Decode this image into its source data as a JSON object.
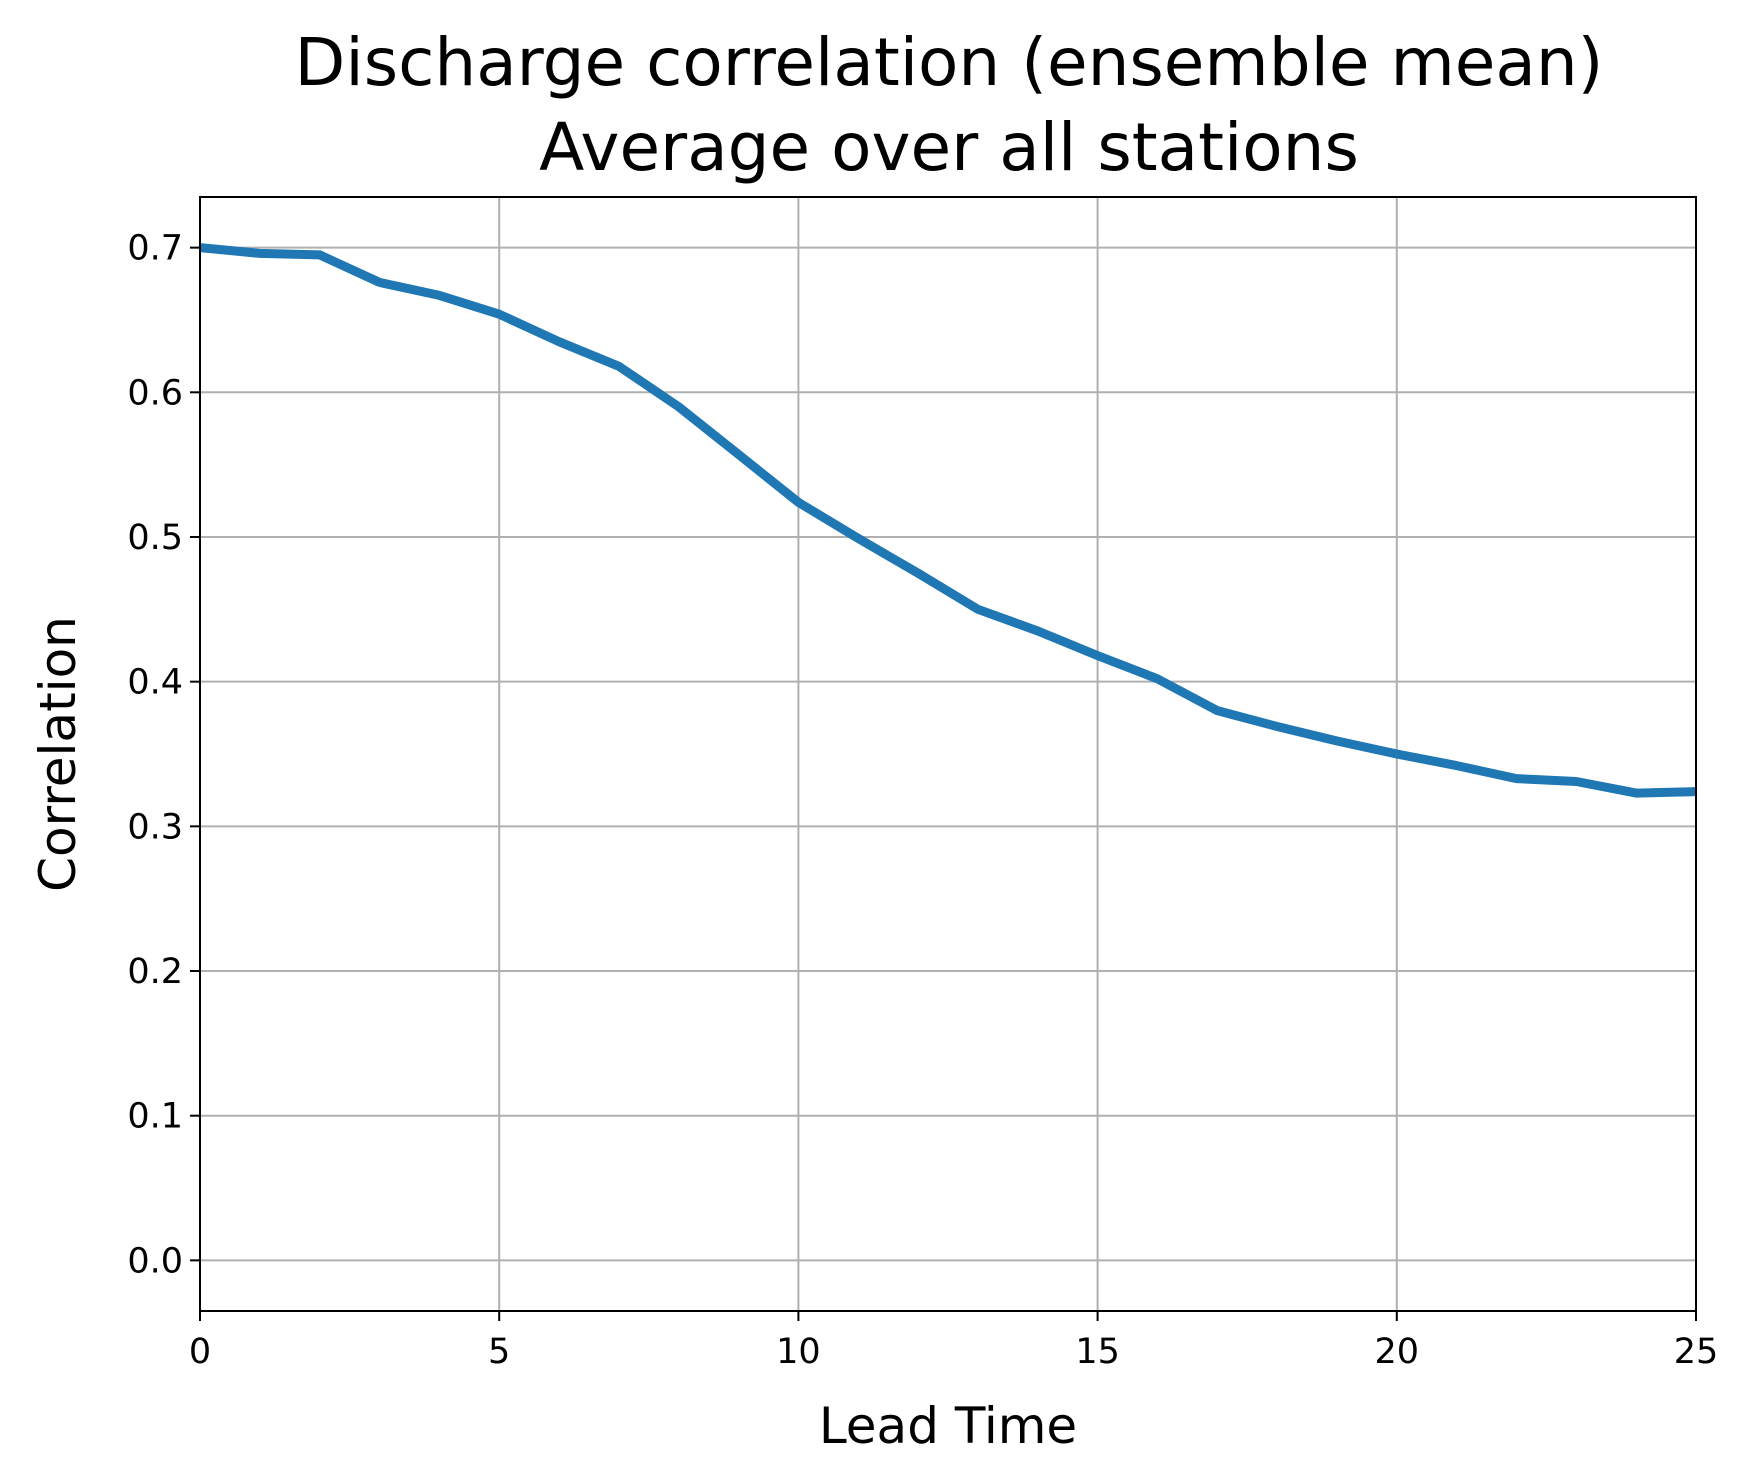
{
  "chart_data": {
    "type": "line",
    "title": "Discharge correlation (ensemble mean)",
    "subtitle": "Average over all stations",
    "xlabel": "Lead Time",
    "ylabel": "Correlation",
    "xlim": [
      0,
      25
    ],
    "ylim": [
      -0.035,
      0.735
    ],
    "xticks": [
      0,
      5,
      10,
      15,
      20,
      25
    ],
    "xtick_labels": [
      "0",
      "5",
      "10",
      "15",
      "20",
      "25"
    ],
    "yticks": [
      0.0,
      0.1,
      0.2,
      0.3,
      0.4,
      0.5,
      0.6,
      0.7
    ],
    "ytick_labels": [
      "0.0",
      "0.1",
      "0.2",
      "0.3",
      "0.4",
      "0.5",
      "0.6",
      "0.7"
    ],
    "grid": true,
    "series": [
      {
        "color": "#1f77b4",
        "x": [
          0,
          1,
          2,
          3,
          4,
          5,
          6,
          7,
          8,
          9,
          10,
          11,
          12,
          13,
          14,
          15,
          16,
          17,
          18,
          19,
          20,
          21,
          22,
          23,
          24,
          25
        ],
        "values": [
          0.7,
          0.696,
          0.695,
          0.676,
          0.667,
          0.654,
          0.635,
          0.618,
          0.59,
          0.557,
          0.524,
          0.499,
          0.475,
          0.45,
          0.435,
          0.418,
          0.402,
          0.38,
          0.369,
          0.359,
          0.35,
          0.342,
          0.333,
          0.331,
          0.323,
          0.324
        ]
      }
    ]
  }
}
